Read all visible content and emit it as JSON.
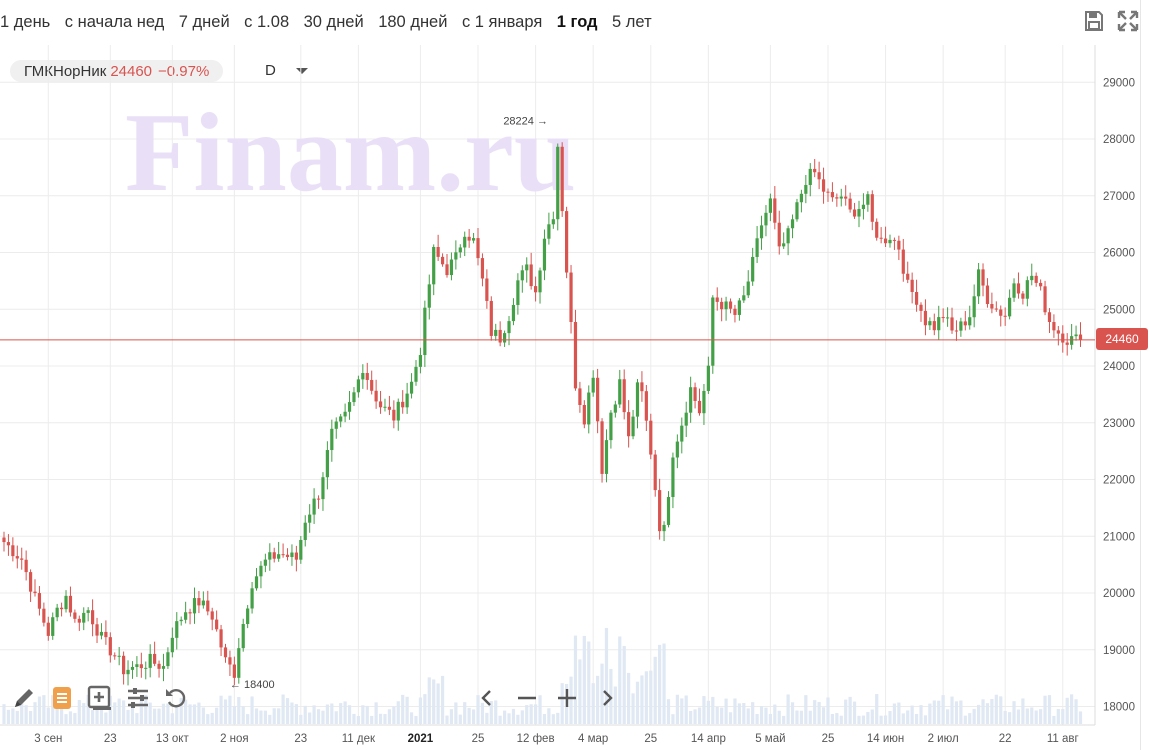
{
  "periods": [
    {
      "label": "1 день"
    },
    {
      "label": "с начала нед"
    },
    {
      "label": "7 дней"
    },
    {
      "label": "с 1.08"
    },
    {
      "label": "30 дней"
    },
    {
      "label": "180 дней"
    },
    {
      "label": "с 1 января"
    },
    {
      "label": "1 год",
      "active": true
    },
    {
      "label": "5 лет"
    }
  ],
  "ticker": {
    "name": "ГМКНорНик",
    "price": "24460",
    "change": "−0.97%"
  },
  "interval": "D",
  "watermark": "Finam.ru",
  "last_price_label": "24460",
  "colors": {
    "up": "#43a047",
    "down": "#d9534f",
    "watermark": "#e9e0f7",
    "volume": "#dfe8f3",
    "grid": "#ececec"
  },
  "icons": {
    "top": [
      "save-icon",
      "expand-icon"
    ],
    "bottom": [
      "pencil-icon",
      "list-icon",
      "add-indicator-icon",
      "settings-sliders-icon",
      "reset-icon"
    ],
    "nav": [
      "chevron-left-icon",
      "zoom-out-icon",
      "zoom-in-icon",
      "chevron-right-icon"
    ]
  },
  "chart_data": {
    "type": "candlestick",
    "ylim": [
      17800,
      29400
    ],
    "y_ticks": [
      18000,
      19000,
      20000,
      21000,
      22000,
      23000,
      24000,
      25000,
      26000,
      27000,
      28000,
      29000
    ],
    "x_ticks": [
      {
        "label": "3 сен",
        "i": 10
      },
      {
        "label": "23",
        "i": 24
      },
      {
        "label": "13 окт",
        "i": 38
      },
      {
        "label": "2 ноя",
        "i": 52
      },
      {
        "label": "23",
        "i": 67
      },
      {
        "label": "11 дек",
        "i": 80
      },
      {
        "label": "2021",
        "i": 94,
        "bold": true
      },
      {
        "label": "25",
        "i": 107
      },
      {
        "label": "12 фев",
        "i": 120
      },
      {
        "label": "4 мар",
        "i": 133
      },
      {
        "label": "25",
        "i": 146
      },
      {
        "label": "14 апр",
        "i": 159
      },
      {
        "label": "5 май",
        "i": 173
      },
      {
        "label": "25",
        "i": 186
      },
      {
        "label": "14 июн",
        "i": 199
      },
      {
        "label": "2 июл",
        "i": 212
      },
      {
        "label": "22",
        "i": 226
      },
      {
        "label": "11 авг",
        "i": 239
      }
    ],
    "last_price": 24460,
    "annotations": [
      {
        "text": "28224",
        "value": 28224,
        "i": 124,
        "dir": "right"
      },
      {
        "text": "18400",
        "value": 18400,
        "i": 51,
        "dir": "left"
      }
    ],
    "n": 244,
    "anchors": [
      [
        0,
        20900
      ],
      [
        4,
        20600
      ],
      [
        7,
        19900
      ],
      [
        10,
        19300
      ],
      [
        12,
        19700
      ],
      [
        14,
        19950
      ],
      [
        16,
        19500
      ],
      [
        19,
        19700
      ],
      [
        22,
        19200
      ],
      [
        25,
        18900
      ],
      [
        27,
        18650
      ],
      [
        30,
        18700
      ],
      [
        33,
        18800
      ],
      [
        36,
        18700
      ],
      [
        38,
        19300
      ],
      [
        41,
        19700
      ],
      [
        44,
        19850
      ],
      [
        47,
        19600
      ],
      [
        50,
        18800
      ],
      [
        52,
        18600
      ],
      [
        53,
        19100
      ],
      [
        56,
        20200
      ],
      [
        59,
        20550
      ],
      [
        62,
        20700
      ],
      [
        66,
        20600
      ],
      [
        68,
        21300
      ],
      [
        71,
        21750
      ],
      [
        74,
        22800
      ],
      [
        77,
        23100
      ],
      [
        79,
        23500
      ],
      [
        81,
        24000
      ],
      [
        83,
        23600
      ],
      [
        85,
        23300
      ],
      [
        88,
        23100
      ],
      [
        90,
        23400
      ],
      [
        92,
        23700
      ],
      [
        94,
        24300
      ],
      [
        95,
        24900
      ],
      [
        97,
        26000
      ],
      [
        100,
        25700
      ],
      [
        102,
        25900
      ],
      [
        104,
        26400
      ],
      [
        106,
        26200
      ],
      [
        108,
        25500
      ],
      [
        110,
        24600
      ],
      [
        112,
        24500
      ],
      [
        114,
        24900
      ],
      [
        116,
        25500
      ],
      [
        118,
        25700
      ],
      [
        120,
        25300
      ],
      [
        122,
        26300
      ],
      [
        124,
        26700
      ],
      [
        125,
        27900
      ],
      [
        127,
        25700
      ],
      [
        129,
        23700
      ],
      [
        131,
        23100
      ],
      [
        133,
        23900
      ],
      [
        135,
        22200
      ],
      [
        137,
        23200
      ],
      [
        139,
        23700
      ],
      [
        141,
        22700
      ],
      [
        143,
        23600
      ],
      [
        144,
        23500
      ],
      [
        146,
        22500
      ],
      [
        148,
        21200
      ],
      [
        149,
        21100
      ],
      [
        151,
        22500
      ],
      [
        153,
        23000
      ],
      [
        155,
        23600
      ],
      [
        157,
        23200
      ],
      [
        159,
        23900
      ],
      [
        160,
        25200
      ],
      [
        162,
        25100
      ],
      [
        165,
        24900
      ],
      [
        167,
        25200
      ],
      [
        169,
        25800
      ],
      [
        171,
        26500
      ],
      [
        173,
        26900
      ],
      [
        175,
        26000
      ],
      [
        177,
        26300
      ],
      [
        179,
        26800
      ],
      [
        181,
        27300
      ],
      [
        183,
        27400
      ],
      [
        185,
        27100
      ],
      [
        187,
        26900
      ],
      [
        189,
        27000
      ],
      [
        191,
        26700
      ],
      [
        193,
        26800
      ],
      [
        195,
        26900
      ],
      [
        196,
        26500
      ],
      [
        198,
        26200
      ],
      [
        200,
        26300
      ],
      [
        202,
        26100
      ],
      [
        204,
        25400
      ],
      [
        206,
        25200
      ],
      [
        208,
        24800
      ],
      [
        210,
        24700
      ],
      [
        212,
        24900
      ],
      [
        214,
        24600
      ],
      [
        216,
        24700
      ],
      [
        218,
        24900
      ],
      [
        220,
        25600
      ],
      [
        222,
        25200
      ],
      [
        224,
        25000
      ],
      [
        226,
        24900
      ],
      [
        228,
        25500
      ],
      [
        230,
        25300
      ],
      [
        232,
        25600
      ],
      [
        234,
        25300
      ],
      [
        236,
        24800
      ],
      [
        238,
        24600
      ],
      [
        240,
        24470
      ],
      [
        243,
        24460
      ]
    ],
    "volumes_note": "relative daily volume bars along the bottom; taller around late Feb–March 2021"
  }
}
